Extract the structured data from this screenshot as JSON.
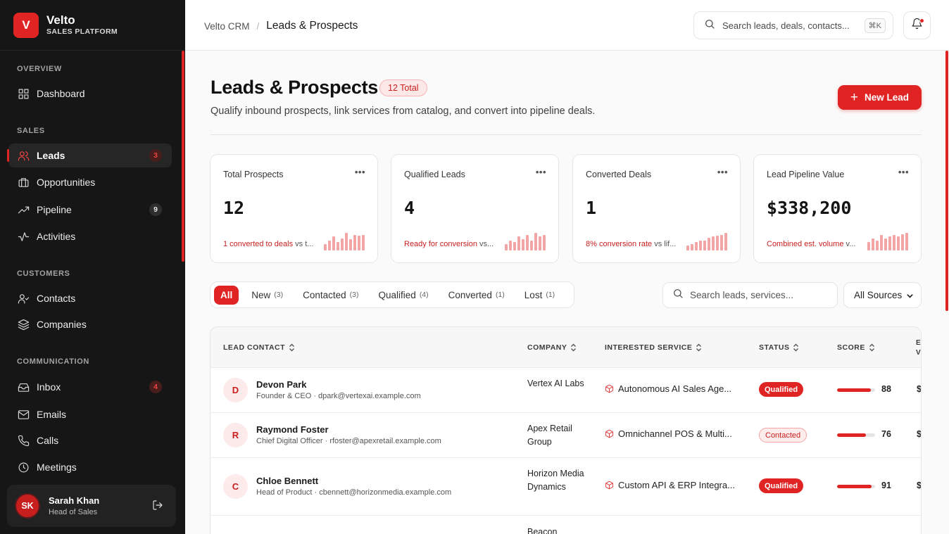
{
  "brand": {
    "logo_letter": "V",
    "name": "Velto",
    "subtitle": "SALES PLATFORM"
  },
  "sidebar": {
    "sections": [
      {
        "label": "OVERVIEW"
      },
      {
        "label": "SALES"
      },
      {
        "label": "CUSTOMERS"
      },
      {
        "label": "COMMUNICATION"
      }
    ],
    "items": [
      {
        "label": "Dashboard",
        "icon": "grid-icon"
      },
      {
        "label": "Leads",
        "icon": "users-icon",
        "badge": "3",
        "active": true
      },
      {
        "label": "Opportunities",
        "icon": "briefcase-icon"
      },
      {
        "label": "Pipeline",
        "icon": "trending-up-icon",
        "badge": "9"
      },
      {
        "label": "Activities",
        "icon": "activity-icon"
      },
      {
        "label": "Contacts",
        "icon": "user-check-icon"
      },
      {
        "label": "Companies",
        "icon": "layers-icon"
      },
      {
        "label": "Inbox",
        "icon": "inbox-icon",
        "badge": "4"
      },
      {
        "label": "Emails",
        "icon": "mail-icon"
      },
      {
        "label": "Calls",
        "icon": "phone-icon"
      },
      {
        "label": "Meetings",
        "icon": "clock-icon"
      }
    ],
    "user": {
      "initials": "SK",
      "name": "Sarah Khan",
      "role": "Head of Sales"
    }
  },
  "topbar": {
    "breadcrumb_root": "Velto CRM",
    "breadcrumb_sep": "/",
    "breadcrumb_current": "Leads & Prospects",
    "search_placeholder": "Search leads, deals, contacts...",
    "search_shortcut": "⌘K"
  },
  "header": {
    "title": "Leads & Prospects",
    "total_badge": "12 Total",
    "subtitle": "Qualify inbound prospects, link services from catalog, and convert into pipeline deals.",
    "new_button": "New Lead"
  },
  "stats": [
    {
      "label": "Total Prospects",
      "value": "12",
      "highlight": "1 converted to deals",
      "rest": " vs t...",
      "spark": [
        0.35,
        0.55,
        0.75,
        0.45,
        0.65,
        0.95,
        0.6,
        0.85,
        0.8,
        0.85
      ]
    },
    {
      "label": "Qualified Leads",
      "value": "4",
      "highlight": "Ready for conversion",
      "rest": " vs...",
      "spark": [
        0.35,
        0.55,
        0.45,
        0.75,
        0.6,
        0.85,
        0.55,
        0.95,
        0.75,
        0.85
      ]
    },
    {
      "label": "Converted Deals",
      "value": "1",
      "highlight": "8% conversion rate",
      "rest": " vs lif...",
      "spark": [
        0.25,
        0.35,
        0.45,
        0.55,
        0.55,
        0.7,
        0.75,
        0.8,
        0.85,
        0.95
      ]
    },
    {
      "label": "Lead Pipeline Value",
      "value": "$338,200",
      "highlight": "Combined est. volume",
      "rest": " v...",
      "spark": [
        0.45,
        0.65,
        0.55,
        0.85,
        0.65,
        0.75,
        0.85,
        0.75,
        0.9,
        0.95
      ]
    }
  ],
  "filters": {
    "tabs": [
      {
        "label": "All",
        "count": "",
        "active": true
      },
      {
        "label": "New",
        "count": "(3)"
      },
      {
        "label": "Contacted",
        "count": "(3)"
      },
      {
        "label": "Qualified",
        "count": "(4)"
      },
      {
        "label": "Converted",
        "count": "(1)"
      },
      {
        "label": "Lost",
        "count": "(1)"
      }
    ],
    "search_placeholder": "Search leads, services...",
    "source_select": "All Sources"
  },
  "table": {
    "columns": [
      "LEAD CONTACT",
      "COMPANY",
      "INTERESTED SERVICE",
      "STATUS",
      "SCORE"
    ],
    "clipped_column_lines": [
      "E",
      "V"
    ],
    "rows": [
      {
        "initial": "D",
        "name": "Devon Park",
        "sub": "Founder & CEO · dpark@vertexai.example.com",
        "company": "Vertex AI Labs",
        "service": "Autonomous AI Sales Age...",
        "status": "Qualified",
        "status_kind": "qualified",
        "score": 88,
        "score_label": "88",
        "clipped_value": "$"
      },
      {
        "initial": "R",
        "name": "Raymond Foster",
        "sub": "Chief Digital Officer · rfoster@apexretail.example.com",
        "company": "Apex Retail Group",
        "service": "Omnichannel POS & Multi...",
        "status": "Contacted",
        "status_kind": "contacted",
        "score": 76,
        "score_label": "76",
        "clipped_value": "$"
      },
      {
        "initial": "C",
        "name": "Chloe Bennett",
        "sub": "Head of Product · cbennett@horizonmedia.example.com",
        "company": "Horizon Media Dynamics",
        "service": "Custom API & ERP Integra...",
        "status": "Qualified",
        "status_kind": "qualified",
        "score": 91,
        "score_label": "91",
        "clipped_value": "$"
      },
      {
        "company": "Beacon"
      }
    ]
  },
  "colors": {
    "accent": "#e02424",
    "sidebar_bg": "#161616",
    "page_bg": "#fafafa"
  }
}
